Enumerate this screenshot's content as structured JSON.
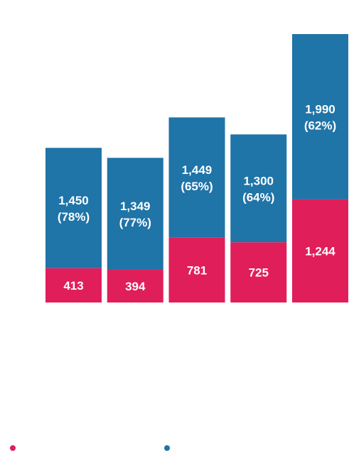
{
  "chart_data": {
    "type": "bar",
    "stacked": true,
    "categories": [
      "",
      "",
      "",
      "",
      ""
    ],
    "series": [
      {
        "values": [
          413,
          394,
          781,
          725,
          1244
        ],
        "color": "#e01e5a"
      },
      {
        "values": [
          1450,
          1349,
          1449,
          1300,
          1990
        ],
        "labels": [
          "1,450\n(78%)",
          "1,349\n(77%)",
          "1,449\n(65%)",
          "1,300\n(64%)",
          "1,990\n(62%)"
        ],
        "color": "#1f74a8"
      }
    ],
    "bottom_labels": [
      "413",
      "394",
      "781",
      "725",
      "1,244"
    ],
    "ylim": [
      0,
      3234
    ],
    "grid": false,
    "legend_position": "bottom"
  },
  "legend": {
    "items": [
      {
        "label": "",
        "color": "#e01e5a"
      },
      {
        "label": "",
        "color": "#1f74a8"
      }
    ]
  }
}
